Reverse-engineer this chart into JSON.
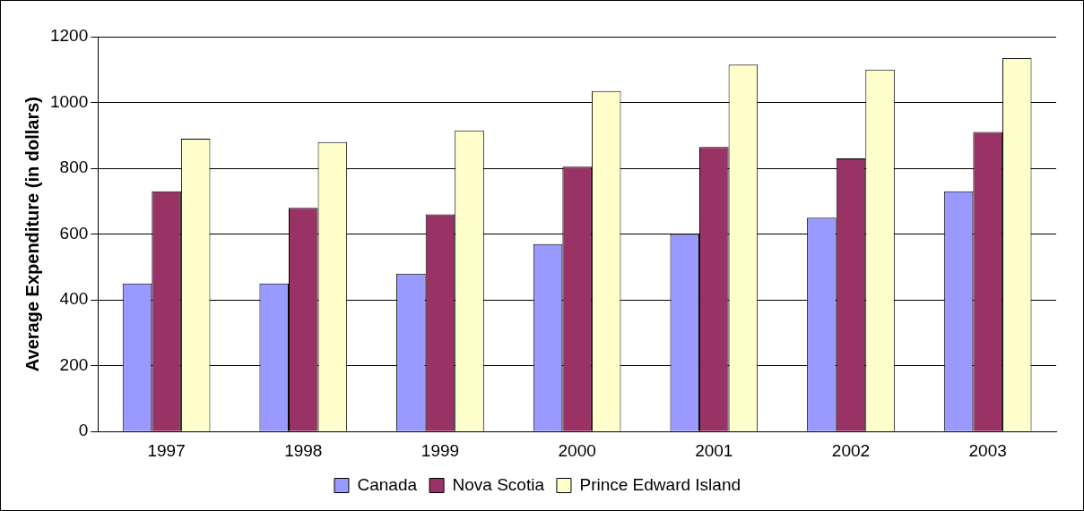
{
  "chart_data": {
    "type": "bar",
    "ylabel": "Average Expenditure (in dollars)",
    "categories": [
      "1997",
      "1998",
      "1999",
      "2000",
      "2001",
      "2002",
      "2003"
    ],
    "series": [
      {
        "name": "Canada",
        "color": "#9999ff",
        "values": [
          450,
          450,
          480,
          570,
          600,
          650,
          730
        ]
      },
      {
        "name": "Nova Scotia",
        "color": "#993366",
        "values": [
          730,
          680,
          660,
          805,
          865,
          830,
          910
        ]
      },
      {
        "name": "Prince Edward Island",
        "color": "#ffffcc",
        "values": [
          890,
          880,
          915,
          1035,
          1115,
          1100,
          1135
        ]
      }
    ],
    "ylim": [
      0,
      1200
    ],
    "yticks": [
      0,
      200,
      400,
      600,
      800,
      1000,
      1200
    ],
    "grid": "y",
    "legend": "bottom"
  }
}
